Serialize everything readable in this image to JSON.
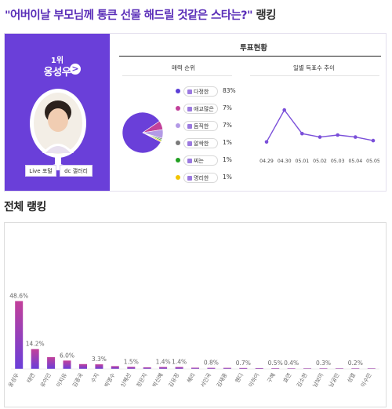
{
  "headline": {
    "question": "\"어버이날 부모님께 통큰 선물 해드릴 것같은 스타는?\"",
    "suffix": " 랭킹"
  },
  "winner": {
    "rank": "1위",
    "name": "옹성우",
    "arrow": ">",
    "live_button": "Live 포털",
    "dc_button": "dc 갤러리"
  },
  "vote_status": {
    "title": "투표현황",
    "charm_title": "매력 순위",
    "daily_title": "일별 득표수 추이"
  },
  "charm_legend": [
    {
      "label": "다정한",
      "percent": "83%",
      "color": "#5b3fd6"
    },
    {
      "label": "애교많은",
      "percent": "7%",
      "color": "#c2409a"
    },
    {
      "label": "듬직한",
      "percent": "7%",
      "color": "#b39ae6"
    },
    {
      "label": "알싹한",
      "percent": "1%",
      "color": "#7a7a7a"
    },
    {
      "label": "찌는",
      "percent": "1%",
      "color": "#22a022"
    },
    {
      "label": "명리한",
      "percent": "1%",
      "color": "#f2c400"
    }
  ],
  "overall_title": "전체 랭킹",
  "chart_data": [
    {
      "type": "pie",
      "title": "매력 순위",
      "labels": [
        "다정한",
        "애교많은",
        "듬직한",
        "알싹한",
        "찌는",
        "명리한"
      ],
      "values": [
        83,
        7,
        7,
        1,
        1,
        1
      ],
      "colors": [
        "#6a3fd9",
        "#c2409a",
        "#b39ae6",
        "#7a7a7a",
        "#22a022",
        "#f2c400"
      ]
    },
    {
      "type": "line",
      "title": "일별 득표수 추이",
      "categories": [
        "04.29",
        "04.30",
        "05.01",
        "05.02",
        "05.03",
        "05.04",
        "05.05"
      ],
      "values": [
        16,
        62,
        28,
        23,
        26,
        23,
        18
      ],
      "ylim": [
        0,
        70
      ],
      "color": "#7a4fd9"
    },
    {
      "type": "bar",
      "title": "전체 랭킹",
      "categories": [
        "옹성우",
        "태연",
        "유아인",
        "이지유",
        "김종국",
        "수지",
        "박명수",
        "신혜선",
        "정은지",
        "박신혜",
        "김유정",
        "혜리",
        "서인국",
        "김재중",
        "웬디",
        "이하이",
        "구혜",
        "효연",
        "김소현",
        "남보미",
        "남궁민",
        "성열",
        "이수민"
      ],
      "values": [
        48.6,
        14.2,
        8.5,
        6.0,
        3.5,
        3.3,
        2.0,
        1.5,
        1.2,
        1.4,
        1.4,
        0.9,
        0.8,
        0.8,
        0.7,
        0.6,
        0.5,
        0.4,
        0.3,
        0.3,
        0.3,
        0.2,
        0.2
      ],
      "data_labels": [
        "48.6%",
        "14.2%",
        "",
        "6.0%",
        "",
        "3.3%",
        "",
        "1.5%",
        "",
        "1.4%",
        "1.4%",
        "",
        "0.8%",
        "",
        "0.7%",
        "",
        "0.5%",
        "0.4%",
        "",
        "0.3%",
        "",
        "0.2%",
        ""
      ],
      "ylim": [
        0,
        100
      ]
    }
  ]
}
